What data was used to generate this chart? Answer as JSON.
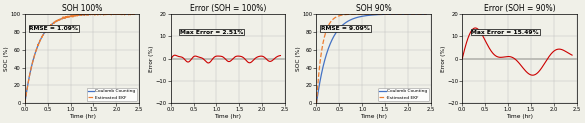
{
  "plot1_title": "SOH 100%",
  "plot1_xlabel": "Time (hr)",
  "plot1_ylabel": "SOC (%)",
  "plot1_rmse": "RMSE = 1.09%",
  "plot1_xlim": [
    0,
    2.5
  ],
  "plot1_ylim": [
    0,
    100
  ],
  "plot2_title": "Error (SOH = 100%)",
  "plot2_xlabel": "Time (hr)",
  "plot2_ylabel": "Error (%)",
  "plot2_maxerr": "Max Error = 2.51%",
  "plot2_xlim": [
    0,
    2.5
  ],
  "plot2_ylim": [
    -20,
    20
  ],
  "plot3_title": "SOH 90%",
  "plot3_xlabel": "Time (hr)",
  "plot3_ylabel": "SOC (%)",
  "plot3_rmse": "RMSE = 9.09%",
  "plot3_xlim": [
    0,
    2.5
  ],
  "plot3_ylim": [
    0,
    100
  ],
  "plot4_title": "Error (SOH = 90%)",
  "plot4_xlabel": "Time (hr)",
  "plot4_ylabel": "Error (%)",
  "plot4_maxerr": "Max Error = 15.49%",
  "plot4_xlim": [
    0,
    2.5
  ],
  "plot4_ylim": [
    -20,
    20
  ],
  "color_cc": "#4472C4",
  "color_ekf": "#ED7D31",
  "color_error1": "#CC0000",
  "color_error2": "#CC0000",
  "legend_cc": "Coulomb Counting",
  "legend_ekf": "Estimated EKF",
  "xticks": [
    0,
    0.5,
    1,
    1.5,
    2,
    2.5
  ],
  "yticks_soc": [
    0,
    20,
    40,
    60,
    80,
    100
  ],
  "yticks_err": [
    -20,
    -10,
    0,
    10,
    20
  ],
  "background": "#f0f0e8"
}
